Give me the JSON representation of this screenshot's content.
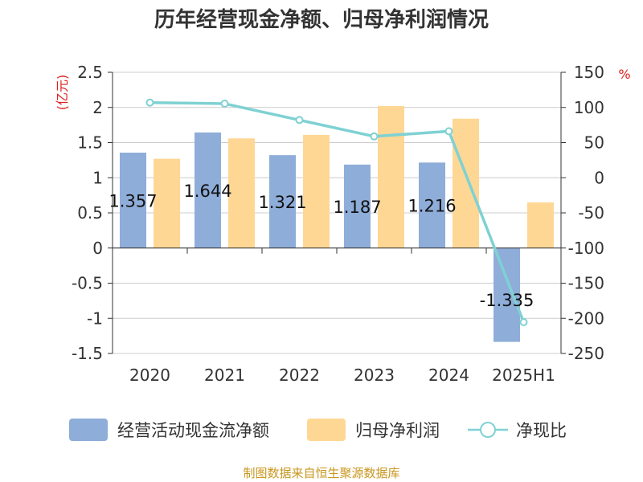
{
  "chart_data": {
    "type": "bar",
    "title": "历年经营现金净额、归母净利润情况",
    "categories": [
      "2020",
      "2021",
      "2022",
      "2023",
      "2024",
      "2025H1"
    ],
    "series": [
      {
        "name": "经营活动现金流净额",
        "type": "bar",
        "axis": "left",
        "color": "#8eadd9",
        "values": [
          1.357,
          1.644,
          1.321,
          1.187,
          1.216,
          -1.335
        ],
        "labels": [
          "1.357",
          "1.644",
          "1.321",
          "1.187",
          "1.216",
          "-1.335"
        ]
      },
      {
        "name": "归母净利润",
        "type": "bar",
        "axis": "left",
        "color": "#fed795",
        "values": [
          1.27,
          1.56,
          1.61,
          2.02,
          1.84,
          0.65
        ]
      },
      {
        "name": "净现比",
        "type": "line",
        "axis": "right",
        "color": "#7fd1d3",
        "values": [
          106.9,
          105.4,
          82.1,
          58.8,
          66.1,
          -205.4
        ]
      }
    ],
    "y_left": {
      "unit": "(亿元)",
      "ylim": [
        -1.5,
        2.5
      ],
      "ticks": [
        2.5,
        2,
        1.5,
        1,
        0.5,
        0,
        -0.5,
        -1,
        -1.5
      ],
      "tick_labels": [
        "2.5",
        "2",
        "1.5",
        "1",
        "0.5",
        "0",
        "-0.5",
        "-1",
        "-1.5"
      ]
    },
    "y_right": {
      "unit": "%",
      "ylim": [
        -250,
        150
      ],
      "ticks": [
        150,
        100,
        50,
        0,
        -50,
        -100,
        -150,
        -200,
        -250
      ],
      "tick_labels": [
        "150",
        "100",
        "50",
        "0",
        "-50",
        "-100",
        "-150",
        "-200",
        "-250"
      ]
    },
    "grid": true,
    "legend_position": "bottom"
  },
  "colors": {
    "unit": "#e0201c",
    "source": "#c8961e",
    "grid": "#cccccc",
    "axis": "#333333"
  },
  "source_text": "制图数据来自恒生聚源数据库"
}
